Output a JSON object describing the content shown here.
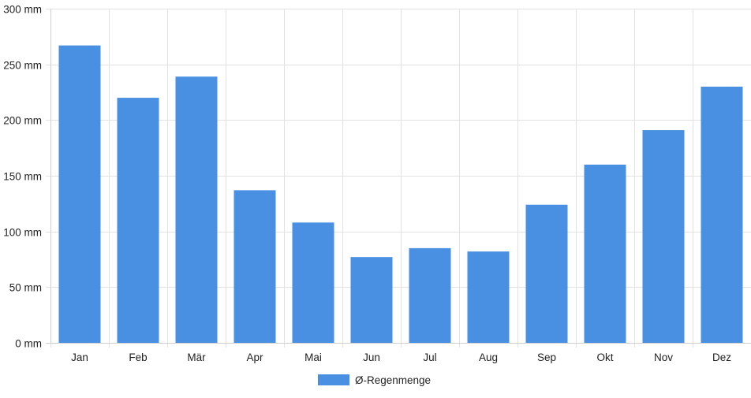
{
  "chart_data": {
    "type": "bar",
    "categories": [
      "Jan",
      "Feb",
      "Mär",
      "Apr",
      "Mai",
      "Jun",
      "Jul",
      "Aug",
      "Sep",
      "Okt",
      "Nov",
      "Dez"
    ],
    "series": [
      {
        "name": "Ø-Regenmenge",
        "color": "#4a90e2",
        "values": [
          267,
          220,
          239,
          137,
          108,
          77,
          85,
          82,
          124,
          160,
          191,
          230
        ]
      }
    ],
    "y_ticks": [
      "0 mm",
      "50 mm",
      "100 mm",
      "150 mm",
      "200 mm",
      "250 mm",
      "300 mm"
    ],
    "ylim": [
      0,
      300
    ],
    "y_unit": "mm",
    "grid": true,
    "legend_position": "bottom"
  }
}
